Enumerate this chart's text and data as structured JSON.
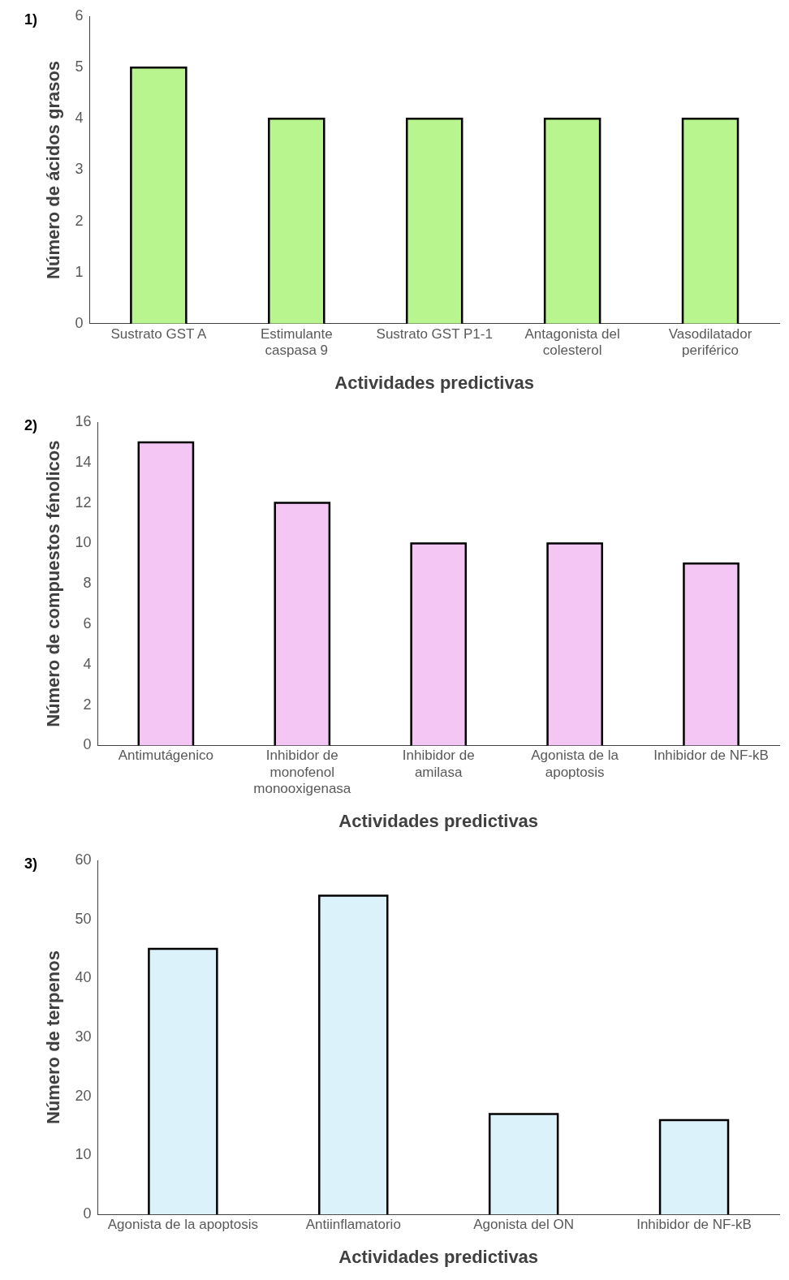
{
  "chart_data": [
    {
      "type": "bar",
      "title": "1)",
      "xlabel": "Actividades predictivas",
      "ylabel": "Número de ácidos grasos",
      "categories": [
        "Sustrato GST A",
        "Estimulante caspasa 9",
        "Sustrato GST P1-1",
        "Antagonista del colesterol",
        "Vasodilatador periférico"
      ],
      "values": [
        5,
        4,
        4,
        4,
        4
      ],
      "color": "#b8f58e",
      "ylim": [
        0,
        6
      ],
      "yticks": [
        0,
        1,
        2,
        3,
        4,
        5,
        6
      ],
      "grid": false,
      "legend": false
    },
    {
      "type": "bar",
      "title": "2)",
      "xlabel": "Actividades predictivas",
      "ylabel": "Número de compuestos fénolicos",
      "categories": [
        "Antimutágenico",
        "Inhibidor de monofenol monooxigenasa",
        "Inhibidor de amilasa",
        "Agonista de la apoptosis",
        "Inhibidor de NF-kB"
      ],
      "values": [
        15,
        12,
        10,
        10,
        9
      ],
      "color": "#f3c6f3",
      "ylim": [
        0,
        16
      ],
      "yticks": [
        0,
        2,
        4,
        6,
        8,
        10,
        12,
        14,
        16
      ],
      "grid": false,
      "legend": false
    },
    {
      "type": "bar",
      "title": "3)",
      "xlabel": "Actividades predictivas",
      "ylabel": "Número de terpenos",
      "categories": [
        "Agonista de la apoptosis",
        "Antiinflamatorio",
        "Agonista del ON",
        "Inhibidor de NF-kB"
      ],
      "values": [
        45,
        54,
        17,
        16
      ],
      "color": "#dcf2fb",
      "ylim": [
        0,
        60
      ],
      "yticks": [
        0,
        10,
        20,
        30,
        40,
        50,
        60
      ],
      "grid": false,
      "legend": false
    }
  ]
}
